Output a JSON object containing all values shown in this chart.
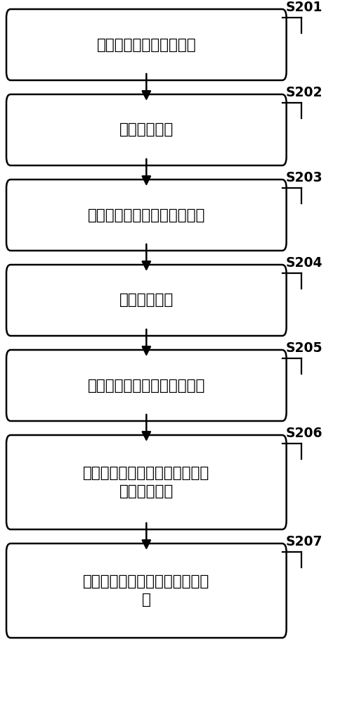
{
  "steps": [
    {
      "label": "选择辅助、泵浦激光波长",
      "step_id": "S201",
      "multiline": false
    },
    {
      "label": "产生辅助激光",
      "step_id": "S202",
      "multiline": false
    },
    {
      "label": "向光学微腔耦合输入辅助激光",
      "step_id": "S203",
      "multiline": false
    },
    {
      "label": "产生泵浦激光",
      "step_id": "S204",
      "multiline": false
    },
    {
      "label": "向光学微腔耦合输入泵浦激光",
      "step_id": "S205",
      "multiline": false
    },
    {
      "label": "保持辅助激光波长和功率，扫描\n泵浦激光波长",
      "step_id": "S206",
      "multiline": true
    },
    {
      "label": "监控克尔光梳，反馈控制辅助激\n光",
      "step_id": "S207",
      "multiline": true
    }
  ],
  "box_color": "#ffffff",
  "box_edge_color": "#000000",
  "arrow_color": "#000000",
  "label_color": "#000000",
  "step_id_color": "#000000",
  "background_color": "#ffffff",
  "font_size": 15.5,
  "step_id_font_size": 13.5
}
